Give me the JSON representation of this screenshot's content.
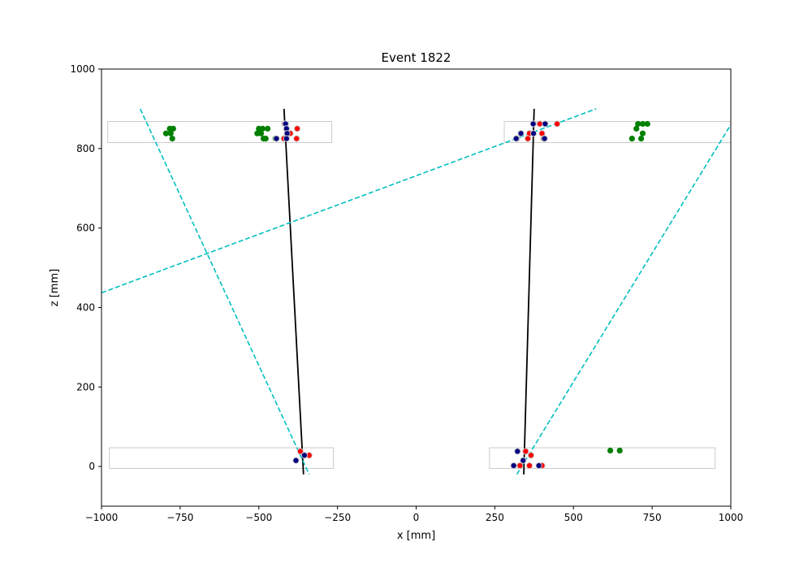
{
  "chart_data": {
    "type": "scatter",
    "title": "Event 1822",
    "xlabel": "x [mm]",
    "ylabel": "z [mm]",
    "xlim": [
      -1000,
      1000
    ],
    "ylim": [
      -100,
      1000
    ],
    "xticks": [
      -1000,
      -750,
      -500,
      -250,
      0,
      250,
      500,
      750,
      1000
    ],
    "yticks": [
      0,
      200,
      400,
      600,
      800,
      1000
    ],
    "grid": false,
    "colors": {
      "frame": "#000000",
      "detector_box": "#cccccc",
      "hits_green": "#008000",
      "hits_red": "#ff0000",
      "hits_navy": "#000080",
      "hit_outline": "#c8c8c8",
      "track_black": "#000000",
      "track_dashed": "#00bfbf"
    },
    "detector_boxes": [
      {
        "x": [
          -980,
          -268
        ],
        "z": [
          815,
          868
        ]
      },
      {
        "x": [
          280,
          1000
        ],
        "z": [
          815,
          868
        ]
      },
      {
        "x": [
          -975,
          -263
        ],
        "z": [
          -5,
          47
        ]
      },
      {
        "x": [
          233,
          950
        ],
        "z": [
          -5,
          47
        ]
      }
    ],
    "series": [
      {
        "color": "#008000",
        "points": [
          [
            -783,
            850
          ],
          [
            -772,
            850
          ],
          [
            -795,
            838
          ],
          [
            -780,
            838
          ],
          [
            -775,
            825
          ],
          [
            -500,
            850
          ],
          [
            -488,
            850
          ],
          [
            -472,
            850
          ],
          [
            -505,
            838
          ],
          [
            -493,
            838
          ],
          [
            -485,
            825
          ],
          [
            -478,
            825
          ],
          [
            -447,
            825
          ],
          [
            705,
            862
          ],
          [
            720,
            862
          ],
          [
            735,
            862
          ],
          [
            700,
            850
          ],
          [
            720,
            838
          ],
          [
            715,
            825
          ],
          [
            686,
            825
          ],
          [
            617,
            40
          ],
          [
            647,
            40
          ]
        ]
      },
      {
        "color": "#ff0000",
        "points": [
          [
            -418,
            862
          ],
          [
            -378,
            850
          ],
          [
            -400,
            838
          ],
          [
            -420,
            825
          ],
          [
            -380,
            825
          ],
          [
            393,
            862
          ],
          [
            448,
            862
          ],
          [
            360,
            838
          ],
          [
            400,
            838
          ],
          [
            320,
            825
          ],
          [
            355,
            825
          ],
          [
            405,
            825
          ],
          [
            -368,
            38
          ],
          [
            -340,
            28
          ],
          [
            348,
            38
          ],
          [
            365,
            28
          ],
          [
            340,
            15
          ],
          [
            330,
            2
          ],
          [
            360,
            2
          ],
          [
            400,
            2
          ]
        ]
      },
      {
        "color": "#000080",
        "points": [
          [
            -415,
            862
          ],
          [
            -412,
            850
          ],
          [
            -410,
            838
          ],
          [
            -444,
            825
          ],
          [
            -412,
            825
          ],
          [
            372,
            862
          ],
          [
            410,
            862
          ],
          [
            333,
            838
          ],
          [
            373,
            838
          ],
          [
            318,
            825
          ],
          [
            408,
            825
          ],
          [
            -355,
            28
          ],
          [
            -382,
            15
          ],
          [
            322,
            38
          ],
          [
            340,
            15
          ],
          [
            310,
            2
          ],
          [
            390,
            2
          ]
        ]
      }
    ],
    "tracks": [
      {
        "style": "solid",
        "color": "#000000",
        "points": [
          [
            -420,
            900
          ],
          [
            -358,
            -20
          ]
        ]
      },
      {
        "style": "solid",
        "color": "#000000",
        "points": [
          [
            375,
            900
          ],
          [
            342,
            -20
          ]
        ]
      },
      {
        "style": "dashed",
        "color": "#00bfbf",
        "points": [
          [
            -877,
            900
          ],
          [
            -340,
            -20
          ]
        ]
      },
      {
        "style": "dashed",
        "color": "#00bfbf",
        "points": [
          [
            -1000,
            437
          ],
          [
            572,
            900
          ]
        ]
      },
      {
        "style": "dashed",
        "color": "#00bfbf",
        "points": [
          [
            320,
            -20
          ],
          [
            1000,
            860
          ]
        ]
      }
    ]
  }
}
